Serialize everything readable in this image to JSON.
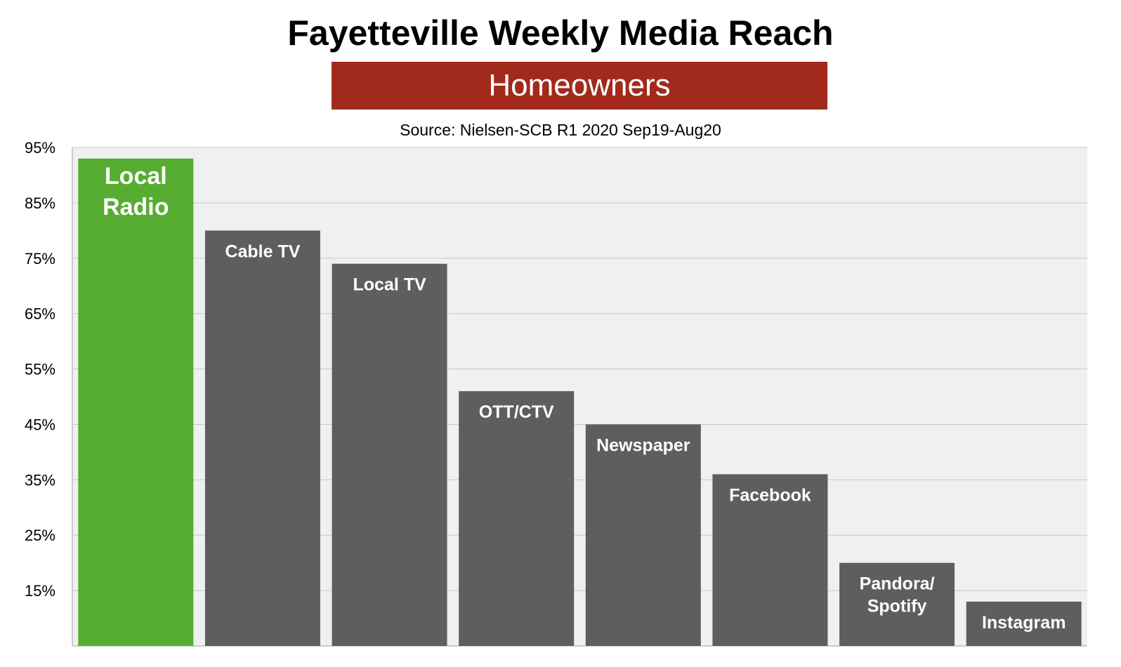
{
  "chart_data": {
    "type": "bar",
    "title": "Fayetteville Weekly Media Reach",
    "subtitle": "Homeowners",
    "source": "Source: Nielsen-SCB R1 2020 Sep19-Aug20",
    "categories": [
      "Local Radio",
      "Cable TV",
      "Local TV",
      "OTT/CTV",
      "Newspaper",
      "Facebook",
      "Pandora/ Spotify",
      "Instagram"
    ],
    "category_label_lines": [
      [
        "Local",
        "Radio"
      ],
      [
        "Cable TV"
      ],
      [
        "Local TV"
      ],
      [
        "OTT/CTV"
      ],
      [
        "Newspaper"
      ],
      [
        "Facebook"
      ],
      [
        "Pandora/",
        "Spotify"
      ],
      [
        "Instagram"
      ]
    ],
    "values": [
      93,
      80,
      74,
      51,
      45,
      36,
      20,
      13
    ],
    "ylim": [
      5,
      95
    ],
    "yticks": [
      15,
      25,
      35,
      45,
      55,
      65,
      75,
      85,
      95
    ],
    "ytick_labels": [
      "15%",
      "25%",
      "35%",
      "45%",
      "55%",
      "65%",
      "75%",
      "85%",
      "95%"
    ],
    "grid": true,
    "colors": {
      "highlight": "#57ad32",
      "bar": "#5e5e5e",
      "banner": "#a22a1c",
      "plot_bg": "#f0f0f2",
      "grid": "#c8c8c8"
    }
  }
}
